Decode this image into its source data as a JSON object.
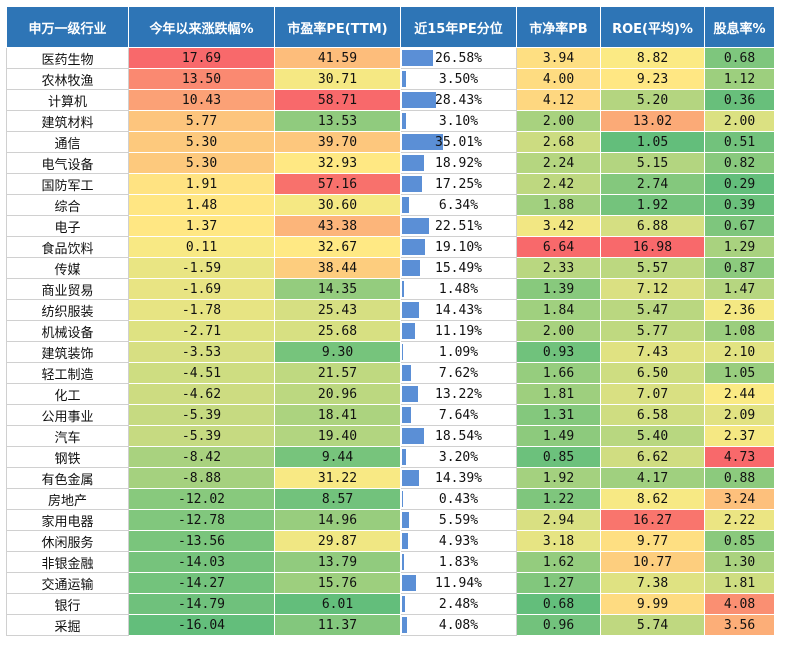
{
  "chart_data": {
    "type": "table",
    "columns": [
      "申万一级行业",
      "今年以来涨跌幅%",
      "市盈率PE(TTM)",
      "近15年PE分位",
      "市净率PB",
      "ROE(平均)%",
      "股息率%"
    ],
    "rows": [
      [
        "医药生物",
        "17.69",
        "41.59",
        "26.58%",
        "3.94",
        "8.82",
        "0.68"
      ],
      [
        "农林牧渔",
        "13.50",
        "30.71",
        "3.50%",
        "4.00",
        "9.23",
        "1.12"
      ],
      [
        "计算机",
        "10.43",
        "58.71",
        "28.43%",
        "4.12",
        "5.20",
        "0.36"
      ],
      [
        "建筑材料",
        "5.77",
        "13.53",
        "3.10%",
        "2.00",
        "13.02",
        "2.00"
      ],
      [
        "通信",
        "5.30",
        "39.70",
        "35.01%",
        "2.68",
        "1.05",
        "0.51"
      ],
      [
        "电气设备",
        "5.30",
        "32.93",
        "18.92%",
        "2.24",
        "5.15",
        "0.82"
      ],
      [
        "国防军工",
        "1.91",
        "57.16",
        "17.25%",
        "2.42",
        "2.74",
        "0.29"
      ],
      [
        "综合",
        "1.48",
        "30.60",
        "6.34%",
        "1.88",
        "1.92",
        "0.39"
      ],
      [
        "电子",
        "1.37",
        "43.38",
        "22.51%",
        "3.42",
        "6.88",
        "0.67"
      ],
      [
        "食品饮料",
        "0.11",
        "32.67",
        "19.10%",
        "6.64",
        "16.98",
        "1.29"
      ],
      [
        "传媒",
        "-1.59",
        "38.44",
        "15.49%",
        "2.33",
        "5.57",
        "0.87"
      ],
      [
        "商业贸易",
        "-1.69",
        "14.35",
        "1.48%",
        "1.39",
        "7.12",
        "1.47"
      ],
      [
        "纺织服装",
        "-1.78",
        "25.43",
        "14.43%",
        "1.84",
        "5.47",
        "2.36"
      ],
      [
        "机械设备",
        "-2.71",
        "25.68",
        "11.19%",
        "2.00",
        "5.77",
        "1.08"
      ],
      [
        "建筑装饰",
        "-3.53",
        "9.30",
        "1.09%",
        "0.93",
        "7.43",
        "2.10"
      ],
      [
        "轻工制造",
        "-4.51",
        "21.57",
        "7.62%",
        "1.66",
        "6.50",
        "1.05"
      ],
      [
        "化工",
        "-4.62",
        "20.96",
        "13.22%",
        "1.81",
        "7.07",
        "2.44"
      ],
      [
        "公用事业",
        "-5.39",
        "18.41",
        "7.64%",
        "1.31",
        "6.58",
        "2.09"
      ],
      [
        "汽车",
        "-5.39",
        "19.40",
        "18.54%",
        "1.49",
        "5.40",
        "2.37"
      ],
      [
        "钢铁",
        "-8.42",
        "9.44",
        "3.20%",
        "0.85",
        "6.62",
        "4.73"
      ],
      [
        "有色金属",
        "-8.88",
        "31.22",
        "14.39%",
        "1.92",
        "4.17",
        "0.88"
      ],
      [
        "房地产",
        "-12.02",
        "8.57",
        "0.43%",
        "1.22",
        "8.62",
        "3.24"
      ],
      [
        "家用电器",
        "-12.78",
        "14.96",
        "5.59%",
        "2.94",
        "16.27",
        "2.22"
      ],
      [
        "休闲服务",
        "-13.56",
        "29.87",
        "4.93%",
        "3.18",
        "9.77",
        "0.85"
      ],
      [
        "非银金融",
        "-14.03",
        "13.79",
        "1.83%",
        "1.62",
        "10.77",
        "1.30"
      ],
      [
        "交通运输",
        "-14.27",
        "15.76",
        "11.94%",
        "1.27",
        "7.38",
        "1.81"
      ],
      [
        "银行",
        "-14.79",
        "6.01",
        "2.48%",
        "0.68",
        "9.99",
        "4.08"
      ],
      [
        "采掘",
        "-16.04",
        "11.37",
        "4.08%",
        "0.96",
        "5.74",
        "3.56"
      ]
    ],
    "header_color": "#2e75b6",
    "bar_color": "#5b8fd6",
    "color_scale": {
      "low": "#63be7b",
      "mid": "#ffeb84",
      "high": "#f8696b"
    }
  }
}
